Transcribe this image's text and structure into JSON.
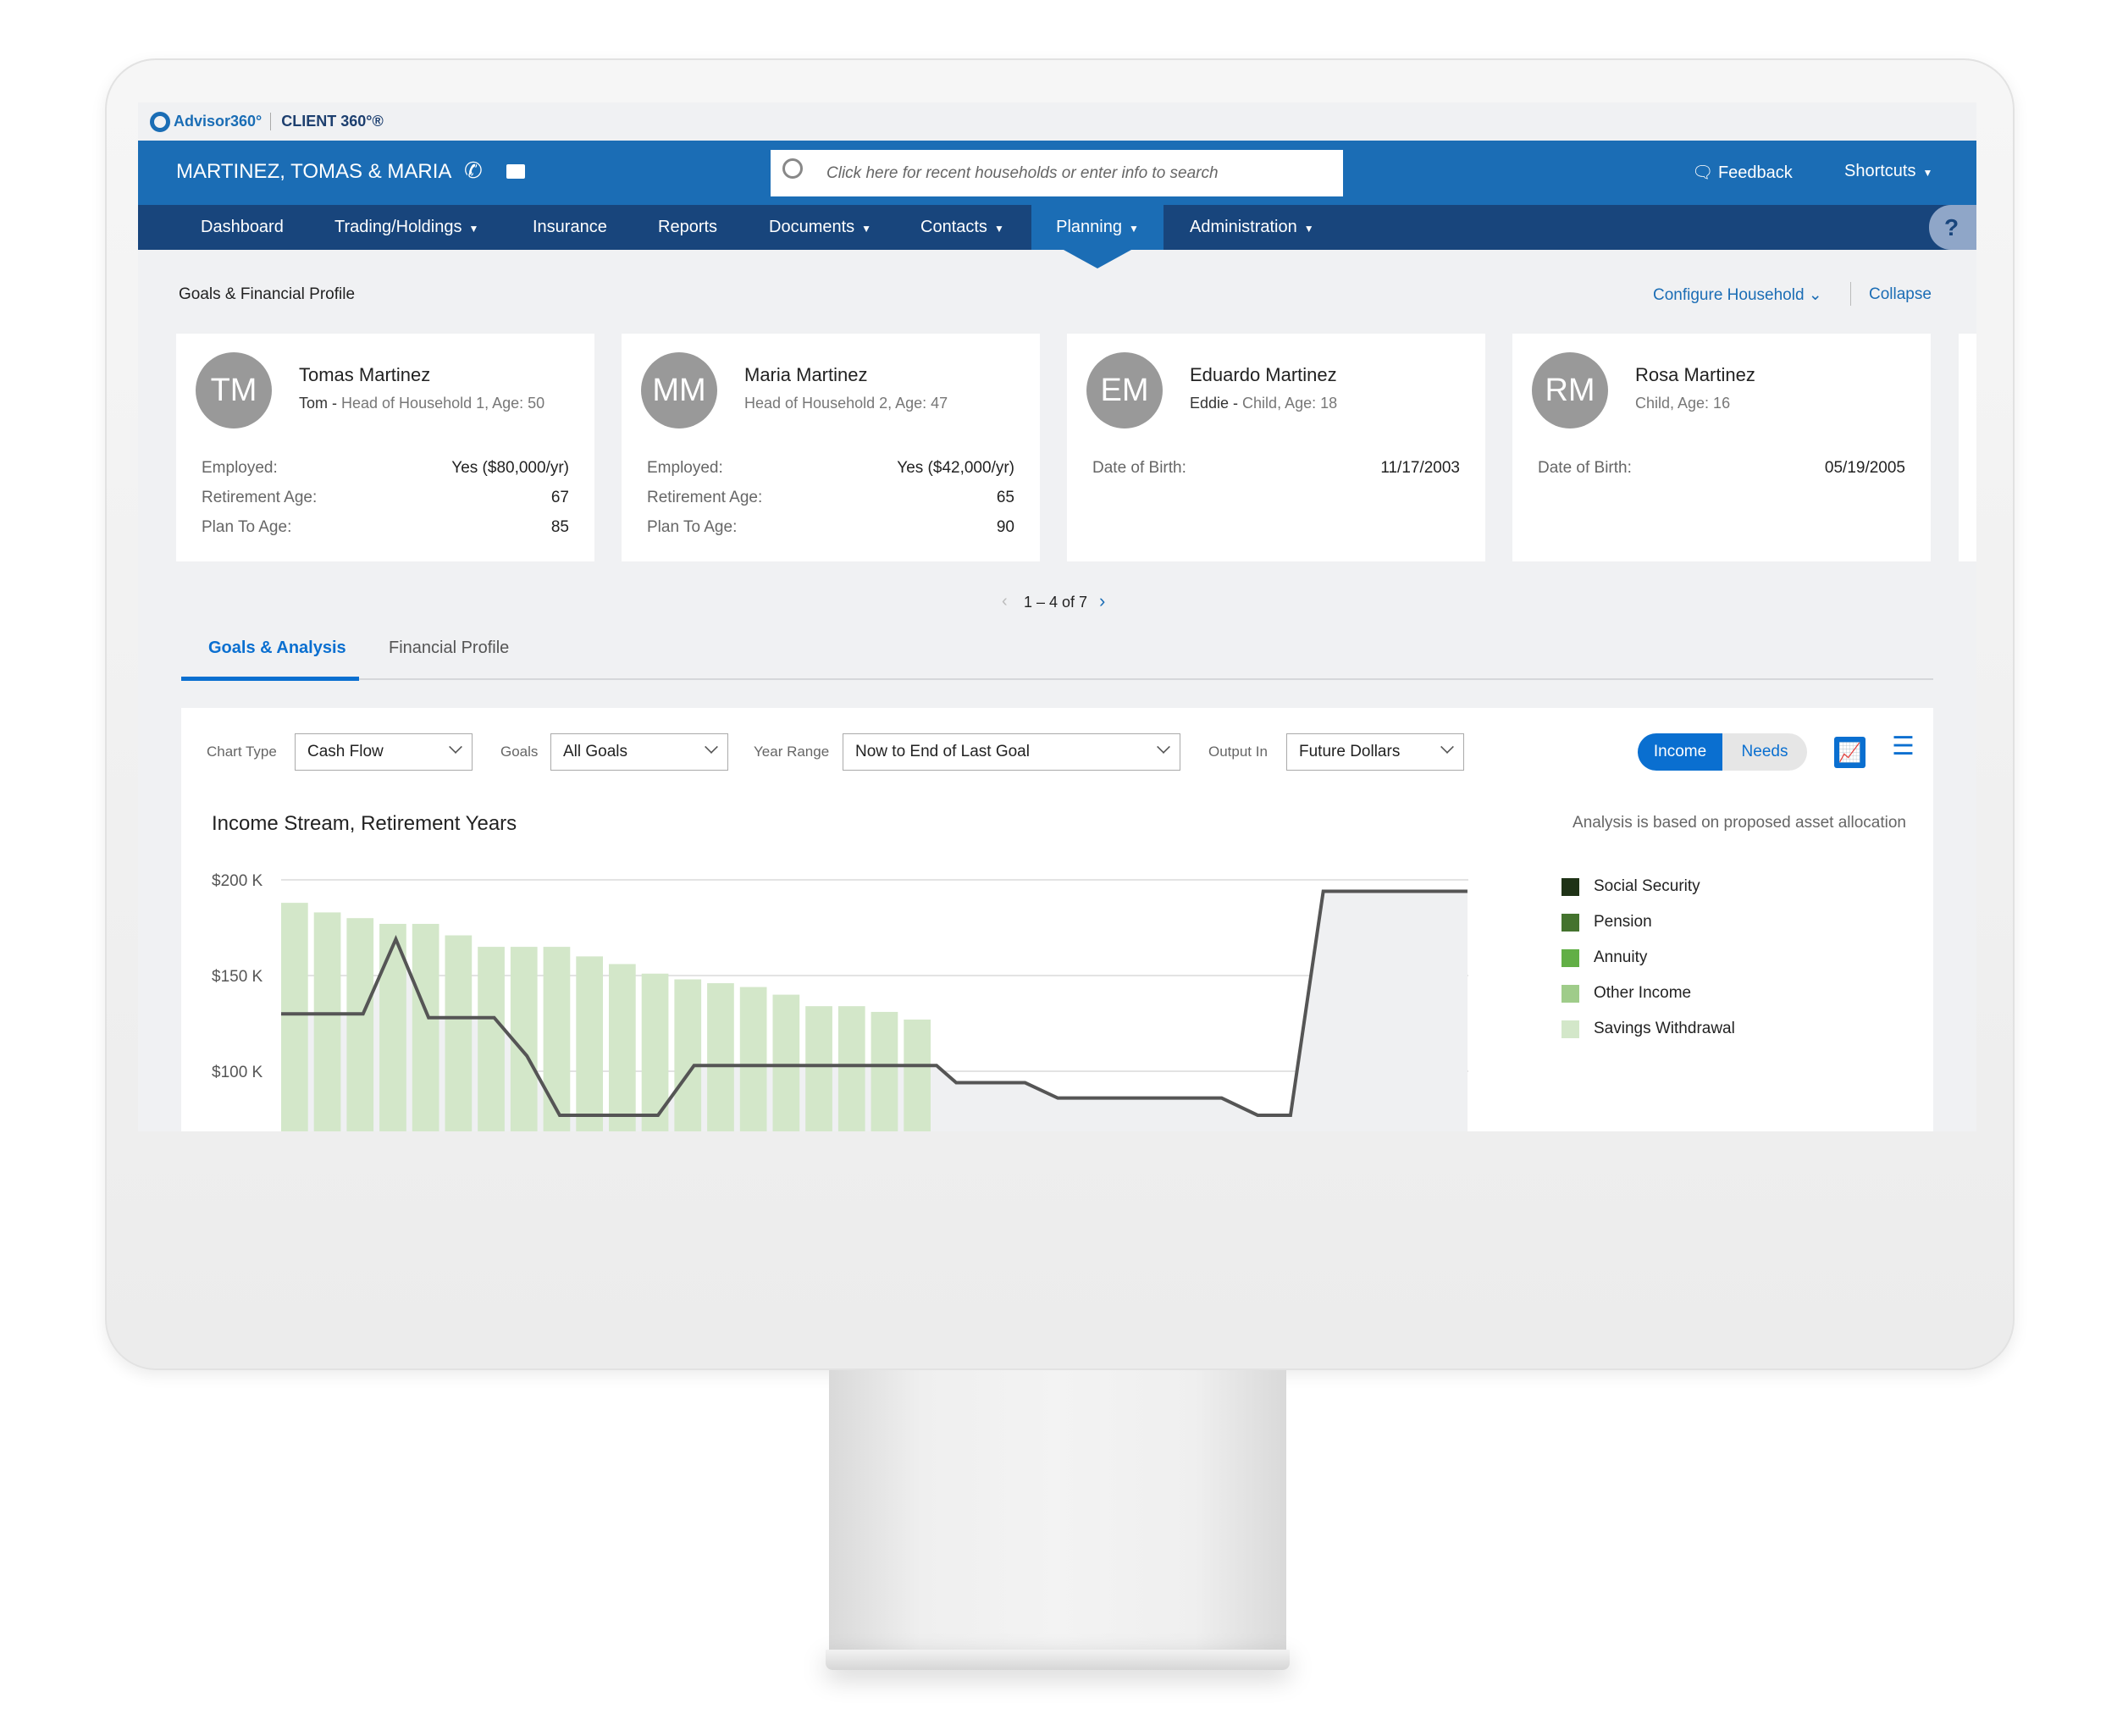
{
  "brand": {
    "logo": "Advisor360°",
    "product": "CLIENT 360°®"
  },
  "header": {
    "household": "MARTINEZ, TOMAS & MARIA",
    "phone_icon": "phone-icon",
    "mail_icon": "mail-icon",
    "search_placeholder": "Click here for recent households or enter info to search",
    "feedback": "Feedback",
    "shortcuts": "Shortcuts"
  },
  "nav": [
    {
      "label": "Dashboard"
    },
    {
      "label": "Trading/Holdings",
      "dropdown": true
    },
    {
      "label": "Insurance"
    },
    {
      "label": "Reports"
    },
    {
      "label": "Documents",
      "dropdown": true
    },
    {
      "label": "Contacts",
      "dropdown": true
    },
    {
      "label": "Planning",
      "dropdown": true,
      "active": true
    },
    {
      "label": "Administration",
      "dropdown": true
    }
  ],
  "help": "?",
  "page": {
    "breadcrumb": "Goals & Financial Profile",
    "configure": "Configure Household",
    "collapse": "Collapse"
  },
  "cards": [
    {
      "initials": "TM",
      "name": "Tomas Martinez",
      "nick": "Tom - ",
      "role": "Head of Household 1, Age: 50",
      "rows": [
        [
          "Employed:",
          "Yes ($80,000/yr)"
        ],
        [
          "Retirement Age:",
          "67"
        ],
        [
          "Plan To Age:",
          "85"
        ]
      ]
    },
    {
      "initials": "MM",
      "name": "Maria Martinez",
      "nick": "",
      "role": "Head of Household 2, Age: 47",
      "rows": [
        [
          "Employed:",
          "Yes ($42,000/yr)"
        ],
        [
          "Retirement Age:",
          "65"
        ],
        [
          "Plan To Age:",
          "90"
        ]
      ]
    },
    {
      "initials": "EM",
      "name": "Eduardo Martinez",
      "nick": "Eddie - ",
      "role": "Child, Age: 18",
      "rows": [
        [
          "Date of Birth:",
          "11/17/2003"
        ]
      ]
    },
    {
      "initials": "RM",
      "name": "Rosa Martinez",
      "nick": "",
      "role": "Child, Age: 16",
      "rows": [
        [
          "Date of Birth:",
          "05/19/2005"
        ]
      ]
    }
  ],
  "pagination": "1 – 4 of 7",
  "tabs": [
    {
      "label": "Goals & Analysis",
      "active": true
    },
    {
      "label": "Financial Profile"
    }
  ],
  "controls": {
    "chart_type_label": "Chart Type",
    "chart_type": "Cash Flow",
    "goals_label": "Goals",
    "goals": "All Goals",
    "year_range_label": "Year Range",
    "year_range": "Now to End of Last Goal",
    "output_label": "Output In",
    "output": "Future Dollars",
    "toggle": [
      "Income",
      "Needs"
    ],
    "toggle_active": "Income"
  },
  "colors": {
    "brand_blue": "#1b6db5",
    "nav_dark": "#18457c",
    "accent": "#0a6fd0"
  },
  "chart_data": {
    "type": "bar",
    "title": "Income Stream, Retirement Years",
    "note": "Analysis is based on proposed asset allocation",
    "yticks": [
      "$200 K",
      "$150 K",
      "$100 K"
    ],
    "ytick_values": [
      200,
      150,
      100
    ],
    "unit": "$K",
    "bars": {
      "name": "Savings Withdrawal",
      "color": "#d3e7c9",
      "values": [
        188,
        183,
        180,
        177,
        177,
        171,
        165,
        165,
        165,
        160,
        156,
        151,
        148,
        146,
        144,
        140,
        134,
        134,
        131,
        127
      ]
    },
    "needs_line": {
      "x": [
        0,
        2.5,
        3.5,
        4.5,
        6.5,
        7.5,
        8.5,
        11.5,
        12.6,
        20,
        20.6,
        22.7,
        23.7,
        28.7,
        29.8,
        30.8,
        31.8,
        36.2
      ],
      "y": [
        130,
        130,
        169,
        128,
        128,
        108,
        77,
        77,
        103,
        103,
        94,
        94,
        86,
        86,
        77,
        77,
        194,
        194
      ]
    },
    "legend": [
      {
        "name": "Social Security",
        "color": "#1f3317"
      },
      {
        "name": "Pension",
        "color": "#44732e"
      },
      {
        "name": "Annuity",
        "color": "#62af46"
      },
      {
        "name": "Other Income",
        "color": "#9fcc8a"
      },
      {
        "name": "Savings Withdrawal",
        "color": "#d3e7c9"
      }
    ]
  }
}
